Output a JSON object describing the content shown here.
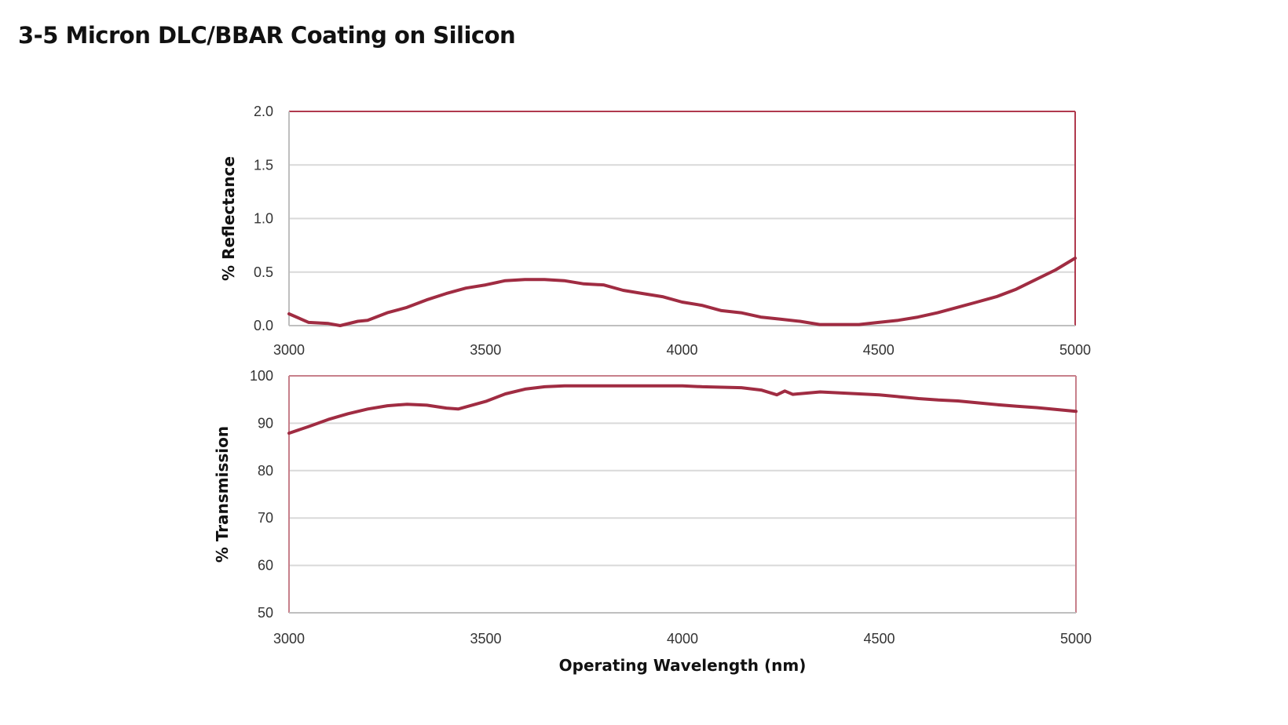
{
  "title": "3-5 Micron DLC/BBAR Coating on Silicon",
  "colors": {
    "line": "#a02c42",
    "frame_top": "#b03a4e",
    "frame_bottom": "#c7808b",
    "grid": "#d9d9d9",
    "axis": "#bfbfbf"
  },
  "chart_data": [
    {
      "type": "line",
      "title": "",
      "xlabel": "",
      "ylabel": "% Reflectance",
      "xlim": [
        3000,
        5000
      ],
      "ylim": [
        0,
        2
      ],
      "xticks": [
        "3000",
        "3500",
        "4000",
        "4500",
        "5000"
      ],
      "yticks": [
        "0.0",
        "0.5",
        "1.0",
        "1.5",
        "2.0"
      ],
      "grid": true,
      "x": [
        3000,
        3050,
        3100,
        3130,
        3175,
        3200,
        3250,
        3300,
        3350,
        3400,
        3450,
        3500,
        3550,
        3600,
        3650,
        3700,
        3750,
        3800,
        3850,
        3900,
        3950,
        4000,
        4050,
        4100,
        4150,
        4200,
        4250,
        4300,
        4350,
        4400,
        4450,
        4500,
        4550,
        4600,
        4650,
        4700,
        4750,
        4800,
        4850,
        4900,
        4950,
        5000
      ],
      "y": [
        0.11,
        0.03,
        0.02,
        0.0,
        0.04,
        0.05,
        0.12,
        0.17,
        0.24,
        0.3,
        0.35,
        0.38,
        0.42,
        0.43,
        0.43,
        0.42,
        0.39,
        0.38,
        0.33,
        0.3,
        0.27,
        0.22,
        0.19,
        0.14,
        0.12,
        0.08,
        0.06,
        0.04,
        0.01,
        0.01,
        0.01,
        0.03,
        0.05,
        0.08,
        0.12,
        0.17,
        0.22,
        0.27,
        0.34,
        0.43,
        0.52,
        0.63
      ]
    },
    {
      "type": "line",
      "title": "",
      "xlabel": "Operating Wavelength (nm)",
      "ylabel": "% Transmission",
      "xlim": [
        3000,
        5000
      ],
      "ylim": [
        50,
        100
      ],
      "xticks": [
        "3000",
        "3500",
        "4000",
        "4500",
        "5000"
      ],
      "yticks": [
        "50",
        "60",
        "70",
        "80",
        "90",
        "100"
      ],
      "grid": true,
      "x": [
        3000,
        3050,
        3100,
        3150,
        3200,
        3250,
        3300,
        3350,
        3400,
        3430,
        3500,
        3550,
        3600,
        3650,
        3700,
        3800,
        3900,
        4000,
        4050,
        4100,
        4150,
        4200,
        4240,
        4260,
        4280,
        4350,
        4400,
        4450,
        4500,
        4550,
        4600,
        4650,
        4700,
        4750,
        4800,
        4850,
        4900,
        4950,
        5000
      ],
      "y": [
        87.9,
        89.3,
        90.8,
        92.0,
        93.0,
        93.7,
        94.0,
        93.8,
        93.2,
        93.0,
        94.6,
        96.2,
        97.2,
        97.7,
        97.9,
        97.9,
        97.9,
        97.9,
        97.7,
        97.6,
        97.5,
        97.0,
        96.0,
        96.8,
        96.1,
        96.6,
        96.4,
        96.2,
        96.0,
        95.6,
        95.2,
        94.9,
        94.7,
        94.3,
        93.9,
        93.6,
        93.3,
        92.9,
        92.5
      ]
    }
  ]
}
